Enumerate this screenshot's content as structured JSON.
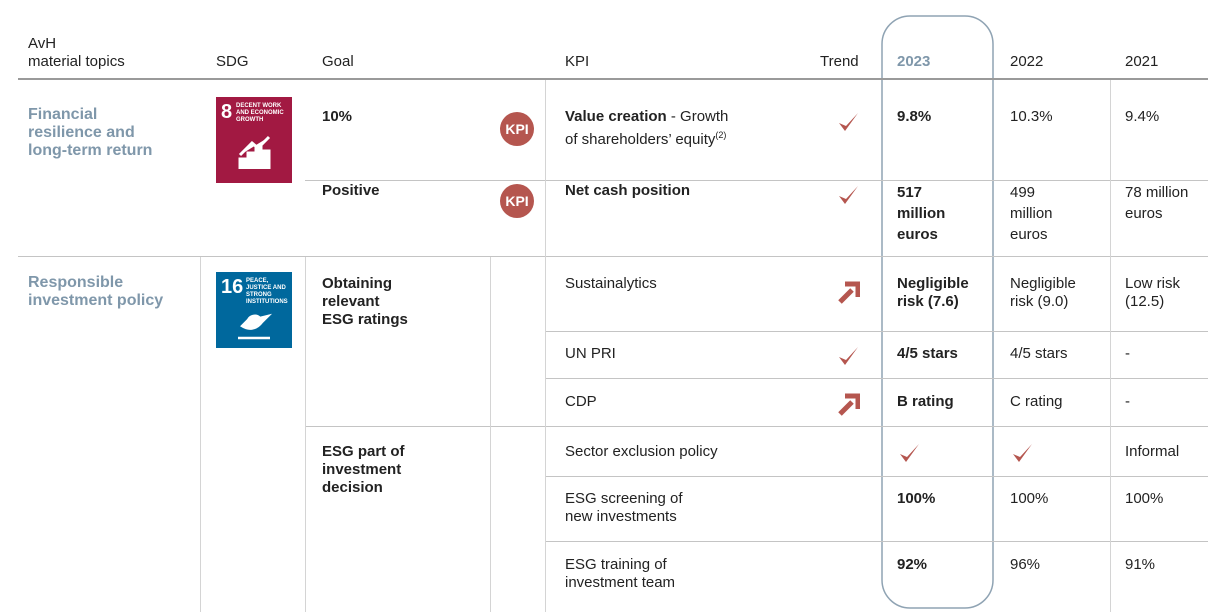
{
  "header": {
    "topics": "AvH\nmaterial topics",
    "sdg": "SDG",
    "goal": "Goal",
    "kpi": "KPI",
    "trend": "Trend",
    "y2023": "2023",
    "y2022": "2022",
    "y2021": "2021"
  },
  "topics": [
    {
      "name": "Financial\nresilience and\nlong-term return",
      "sdg": {
        "number": "8",
        "label": "DECENT WORK AND ECONOMIC GROWTH"
      },
      "goals": [
        {
          "goal": "10%",
          "kpis": [
            {
              "badge": "KPI",
              "kpi": {
                "bold": "Value creation",
                "text": " - Growth\nof shareholders’ equity",
                "note": "(2)"
              },
              "y2023": "9.8%",
              "y2022": "10.3%",
              "y2021": "9.4%"
            }
          ]
        },
        {
          "goal": "Positive",
          "kpis": [
            {
              "badge": "KPI",
              "kpi": {
                "bold": "Net cash position"
              },
              "y2023": "517\nmillion\neuros",
              "y2022": "499\nmillion\neuros",
              "y2021": "78 million\neuros"
            }
          ]
        }
      ]
    },
    {
      "name": "Responsible\ninvestment policy",
      "sdg": {
        "number": "16",
        "label": "PEACE, JUSTICE AND STRONG INSTITUTIONS"
      },
      "goals": [
        {
          "goal": "Obtaining\nrelevant\nESG ratings",
          "kpis": [
            {
              "kpi": "Sustainalytics",
              "y2023": "Negligible\nrisk (7.6)",
              "y2022": "Negligible\nrisk (9.0)",
              "y2021": "Low risk\n(12.5)"
            },
            {
              "kpi": "UN PRI",
              "y2023": "4/5 stars",
              "y2022": "4/5 stars",
              "y2021": "-"
            },
            {
              "kpi": "CDP",
              "y2023": "B rating",
              "y2022": "C rating",
              "y2021": "-"
            }
          ]
        },
        {
          "goal": "ESG part of\ninvestment\ndecision",
          "kpis": [
            {
              "kpi": "Sector exclusion policy",
              "y2021": "Informal"
            },
            {
              "kpi": "ESG screening of\nnew investments",
              "y2023": "100%",
              "y2022": "100%",
              "y2021": "100%"
            },
            {
              "kpi": "ESG training of\ninvestment team",
              "y2023": "92%",
              "y2022": "96%",
              "y2021": "91%"
            }
          ]
        }
      ]
    }
  ]
}
